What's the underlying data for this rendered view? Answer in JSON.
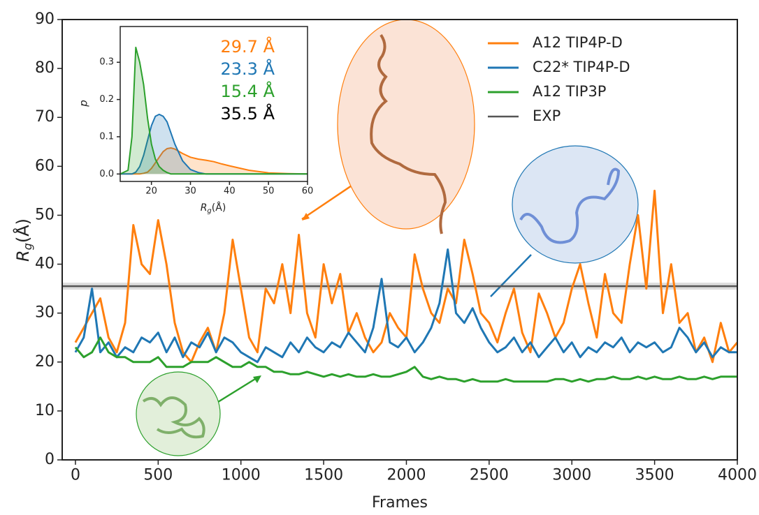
{
  "chart_data": [
    {
      "type": "line",
      "xlabel": "Frames",
      "ylabel": {
        "symbol": "R",
        "subscript": "g",
        "unit": "(Å)"
      },
      "xlim": [
        -80,
        4000
      ],
      "ylim": [
        0,
        90
      ],
      "xticks": [
        0,
        500,
        1000,
        1500,
        2000,
        2500,
        3000,
        3500,
        4000
      ],
      "yticks": [
        0,
        10,
        20,
        30,
        40,
        50,
        60,
        70,
        80,
        90
      ],
      "legend": "upper right",
      "x": [
        0,
        50,
        100,
        150,
        200,
        250,
        300,
        350,
        400,
        450,
        500,
        550,
        600,
        650,
        700,
        750,
        800,
        850,
        900,
        950,
        1000,
        1050,
        1100,
        1150,
        1200,
        1250,
        1300,
        1350,
        1400,
        1450,
        1500,
        1550,
        1600,
        1650,
        1700,
        1750,
        1800,
        1850,
        1900,
        1950,
        2000,
        2050,
        2100,
        2150,
        2200,
        2250,
        2300,
        2350,
        2400,
        2450,
        2500,
        2550,
        2600,
        2650,
        2700,
        2750,
        2800,
        2850,
        2900,
        2950,
        3000,
        3050,
        3100,
        3150,
        3200,
        3250,
        3300,
        3350,
        3400,
        3450,
        3500,
        3550,
        3600,
        3650,
        3700,
        3750,
        3800,
        3850,
        3900,
        3950,
        4000
      ],
      "series": [
        {
          "name": "A12 TIP4P-D",
          "color": "#ff7f0e",
          "values": [
            24,
            27,
            30,
            33,
            25,
            22,
            28,
            48,
            40,
            38,
            49,
            40,
            28,
            22,
            20,
            24,
            27,
            22,
            30,
            45,
            35,
            25,
            22,
            35,
            32,
            40,
            30,
            46,
            30,
            25,
            40,
            32,
            38,
            26,
            30,
            25,
            22,
            24,
            30,
            27,
            25,
            42,
            35,
            30,
            28,
            35,
            32,
            45,
            38,
            30,
            28,
            24,
            30,
            35,
            26,
            22,
            34,
            30,
            25,
            28,
            35,
            40,
            32,
            25,
            38,
            30,
            28,
            40,
            50,
            35,
            55,
            30,
            40,
            28,
            30,
            22,
            25,
            20,
            28,
            22,
            24
          ]
        },
        {
          "name": "C22* TIP4P-D",
          "color": "#1f77b4",
          "values": [
            22,
            25,
            35,
            22,
            24,
            21,
            23,
            22,
            25,
            24,
            26,
            22,
            25,
            21,
            24,
            23,
            26,
            22,
            25,
            24,
            22,
            21,
            20,
            23,
            22,
            21,
            24,
            22,
            25,
            23,
            22,
            24,
            23,
            26,
            24,
            22,
            27,
            37,
            24,
            23,
            25,
            22,
            24,
            27,
            32,
            43,
            30,
            28,
            31,
            27,
            24,
            22,
            23,
            25,
            22,
            24,
            21,
            23,
            25,
            22,
            24,
            21,
            23,
            22,
            24,
            23,
            25,
            22,
            24,
            23,
            24,
            22,
            23,
            27,
            25,
            22,
            24,
            21,
            23,
            22,
            22
          ]
        },
        {
          "name": "A12 TIP3P",
          "color": "#2ca02c",
          "values": [
            23,
            21,
            22,
            25,
            22,
            21,
            21,
            20,
            20,
            20,
            21,
            19,
            19,
            19,
            20,
            20,
            20,
            21,
            20,
            19,
            19,
            20,
            19,
            19,
            18,
            18,
            17.5,
            17.5,
            18,
            17.5,
            17,
            17.5,
            17,
            17.5,
            17,
            17,
            17.5,
            17,
            17,
            17.5,
            18,
            19,
            17,
            16.5,
            17,
            16.5,
            16.5,
            16,
            16.5,
            16,
            16,
            16,
            16.5,
            16,
            16,
            16,
            16,
            16,
            16.5,
            16.5,
            16,
            16.5,
            16,
            16.5,
            16.5,
            17,
            16.5,
            16.5,
            17,
            16.5,
            17,
            16.5,
            16.5,
            17,
            16.5,
            16.5,
            17,
            16.5,
            17,
            17,
            17
          ]
        }
      ],
      "hlines": [
        {
          "name": "EXP",
          "value": 35.5,
          "color": "#555555"
        }
      ]
    },
    {
      "type": "line",
      "xlabel": {
        "symbol": "R",
        "subscript": "g",
        "unit": "(Å)"
      },
      "ylabel": "p",
      "xlim": [
        12,
        60
      ],
      "ylim": [
        -0.02,
        0.396
      ],
      "xticks": [
        20,
        30,
        40,
        50,
        60
      ],
      "yticks": [
        {
          "value": 0,
          "label": "0.0"
        },
        0.1,
        0.2,
        0.3
      ],
      "x": [
        12,
        14,
        15,
        16,
        17,
        18,
        19,
        20,
        21,
        22,
        23,
        24,
        25,
        26,
        28,
        30,
        32,
        34,
        36,
        38,
        40,
        45,
        50,
        55,
        60
      ],
      "series": [
        {
          "color": "#ff7f0e",
          "values": [
            0,
            0,
            0,
            0,
            0,
            0.002,
            0.005,
            0.015,
            0.03,
            0.045,
            0.06,
            0.068,
            0.07,
            0.067,
            0.055,
            0.045,
            0.04,
            0.037,
            0.033,
            0.027,
            0.022,
            0.01,
            0.003,
            0.001,
            0
          ]
        },
        {
          "color": "#1f77b4",
          "values": [
            0,
            0,
            0,
            0.005,
            0.02,
            0.05,
            0.09,
            0.13,
            0.155,
            0.16,
            0.155,
            0.14,
            0.11,
            0.08,
            0.035,
            0.012,
            0.004,
            0,
            0,
            0,
            0,
            0,
            0,
            0,
            0
          ]
        },
        {
          "color": "#2ca02c",
          "values": [
            0,
            0.01,
            0.1,
            0.34,
            0.3,
            0.24,
            0.15,
            0.08,
            0.04,
            0.02,
            0.01,
            0.004,
            0,
            0,
            0,
            0,
            0,
            0,
            0,
            0,
            0,
            0,
            0,
            0,
            0
          ]
        }
      ],
      "annotations": [
        {
          "text": "29.7 Å",
          "color": "#ff7f0e"
        },
        {
          "text": "23.3 Å",
          "color": "#1f77b4"
        },
        {
          "text": "15.4 Å",
          "color": "#2ca02c"
        },
        {
          "text": "35.5 Å",
          "color": "#000000"
        }
      ]
    }
  ]
}
